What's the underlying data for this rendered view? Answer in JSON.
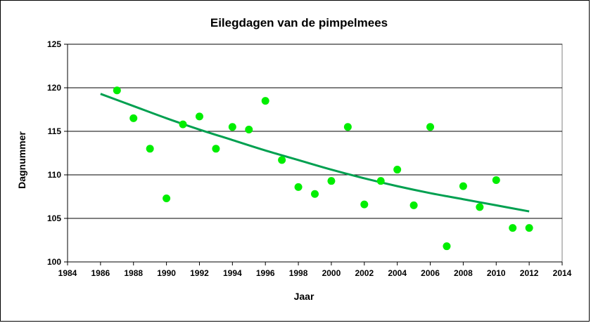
{
  "chart_data": {
    "type": "scatter",
    "title": "Eilegdagen van de pimpelmees",
    "xlabel": "Jaar",
    "ylabel": "Dagnummer",
    "xlim": [
      1984,
      2014
    ],
    "ylim": [
      100,
      125
    ],
    "x_ticks": [
      1984,
      1986,
      1988,
      1990,
      1992,
      1994,
      1996,
      1998,
      2000,
      2002,
      2004,
      2006,
      2008,
      2010,
      2012,
      2014
    ],
    "y_ticks": [
      100,
      105,
      110,
      115,
      120,
      125
    ],
    "grid": "horizontal",
    "colors": {
      "points": "#00ee00",
      "trendline": "#00a050"
    },
    "points": [
      {
        "x": 1987,
        "y": 119.7
      },
      {
        "x": 1988,
        "y": 116.5
      },
      {
        "x": 1989,
        "y": 113.0
      },
      {
        "x": 1990,
        "y": 107.3
      },
      {
        "x": 1991,
        "y": 115.8
      },
      {
        "x": 1992,
        "y": 116.7
      },
      {
        "x": 1993,
        "y": 113.0
      },
      {
        "x": 1994,
        "y": 115.5
      },
      {
        "x": 1995,
        "y": 115.2
      },
      {
        "x": 1996,
        "y": 118.5
      },
      {
        "x": 1997,
        "y": 111.7
      },
      {
        "x": 1998,
        "y": 108.6
      },
      {
        "x": 1999,
        "y": 107.8
      },
      {
        "x": 2000,
        "y": 109.3
      },
      {
        "x": 2001,
        "y": 115.5
      },
      {
        "x": 2002,
        "y": 106.6
      },
      {
        "x": 2003,
        "y": 109.3
      },
      {
        "x": 2004,
        "y": 110.6
      },
      {
        "x": 2005,
        "y": 106.5
      },
      {
        "x": 2006,
        "y": 115.5
      },
      {
        "x": 2007,
        "y": 101.8
      },
      {
        "x": 2008,
        "y": 108.7
      },
      {
        "x": 2009,
        "y": 106.3
      },
      {
        "x": 2010,
        "y": 109.4
      },
      {
        "x": 2011,
        "y": 103.9
      },
      {
        "x": 2012,
        "y": 103.9
      }
    ],
    "trendline": [
      {
        "x": 1986,
        "y": 119.3
      },
      {
        "x": 1988,
        "y": 117.9
      },
      {
        "x": 1990,
        "y": 116.5
      },
      {
        "x": 1992,
        "y": 115.2
      },
      {
        "x": 1994,
        "y": 114.0
      },
      {
        "x": 1996,
        "y": 112.8
      },
      {
        "x": 1998,
        "y": 111.7
      },
      {
        "x": 2000,
        "y": 110.6
      },
      {
        "x": 2002,
        "y": 109.6
      },
      {
        "x": 2004,
        "y": 108.7
      },
      {
        "x": 2006,
        "y": 107.9
      },
      {
        "x": 2008,
        "y": 107.2
      },
      {
        "x": 2010,
        "y": 106.5
      },
      {
        "x": 2012,
        "y": 105.8
      }
    ]
  }
}
